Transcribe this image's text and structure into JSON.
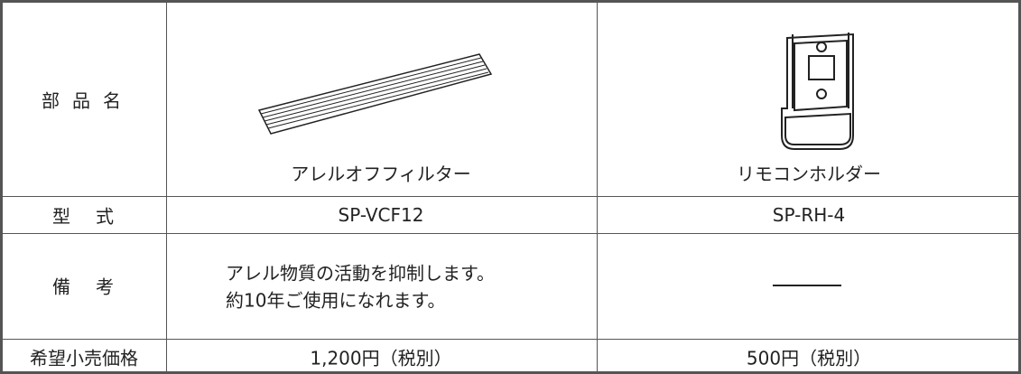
{
  "table": {
    "rows": [
      {
        "header": "部品名",
        "cells": [
          "アレルオフフィルター",
          "リモコンホルダー"
        ]
      },
      {
        "header": "型式",
        "cells": [
          "SP-VCF12",
          "SP-RH-4"
        ]
      },
      {
        "header": "備考",
        "cells": [
          [
            "アレル物質の活動を抑制します。",
            "約10年ご使用になれます。"
          ]
        ]
      },
      {
        "header": "希望小売価格",
        "cells": [
          "1,200円（税別）",
          "500円（税別）"
        ]
      }
    ]
  }
}
